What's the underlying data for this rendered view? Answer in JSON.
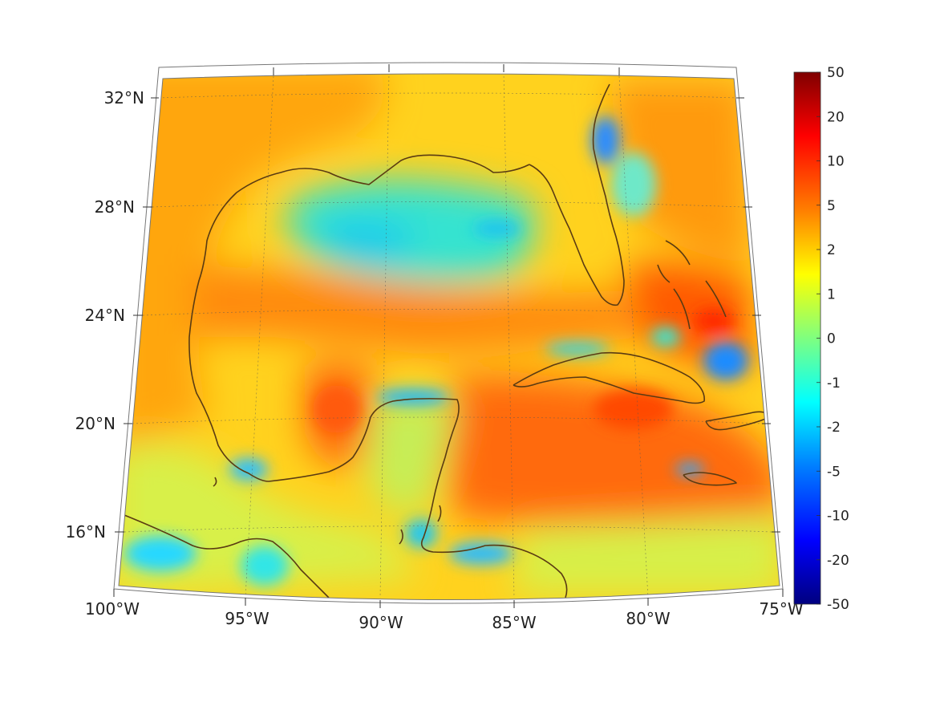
{
  "map": {
    "lat_labels": [
      "32°N",
      "28°N",
      "24°N",
      "20°N",
      "16°N"
    ],
    "lon_labels": [
      "100°W",
      "95°W",
      "90°W",
      "85°W",
      "80°W",
      "75°W"
    ],
    "extent": {
      "lon_min": -100,
      "lon_max": -75,
      "lat_min": 14,
      "lat_max": 32.5
    }
  },
  "colorbar": {
    "tick_labels": [
      "50",
      "20",
      "10",
      "5",
      "2",
      "1",
      "0",
      "-1",
      "-2",
      "-5",
      "-10",
      "-20",
      "-50"
    ],
    "tick_values": [
      50,
      20,
      10,
      5,
      2,
      1,
      0,
      -1,
      -2,
      -5,
      -10,
      -20,
      -50
    ],
    "colors": [
      "#7f0000",
      "#ff0000",
      "#ff7f00",
      "#ffff00",
      "#7fff7f",
      "#00ffff",
      "#007fff",
      "#0000ff",
      "#00007f"
    ]
  },
  "colors": {
    "coastline": "#5a3b12",
    "frame": "#777777",
    "grid": "#555555"
  }
}
